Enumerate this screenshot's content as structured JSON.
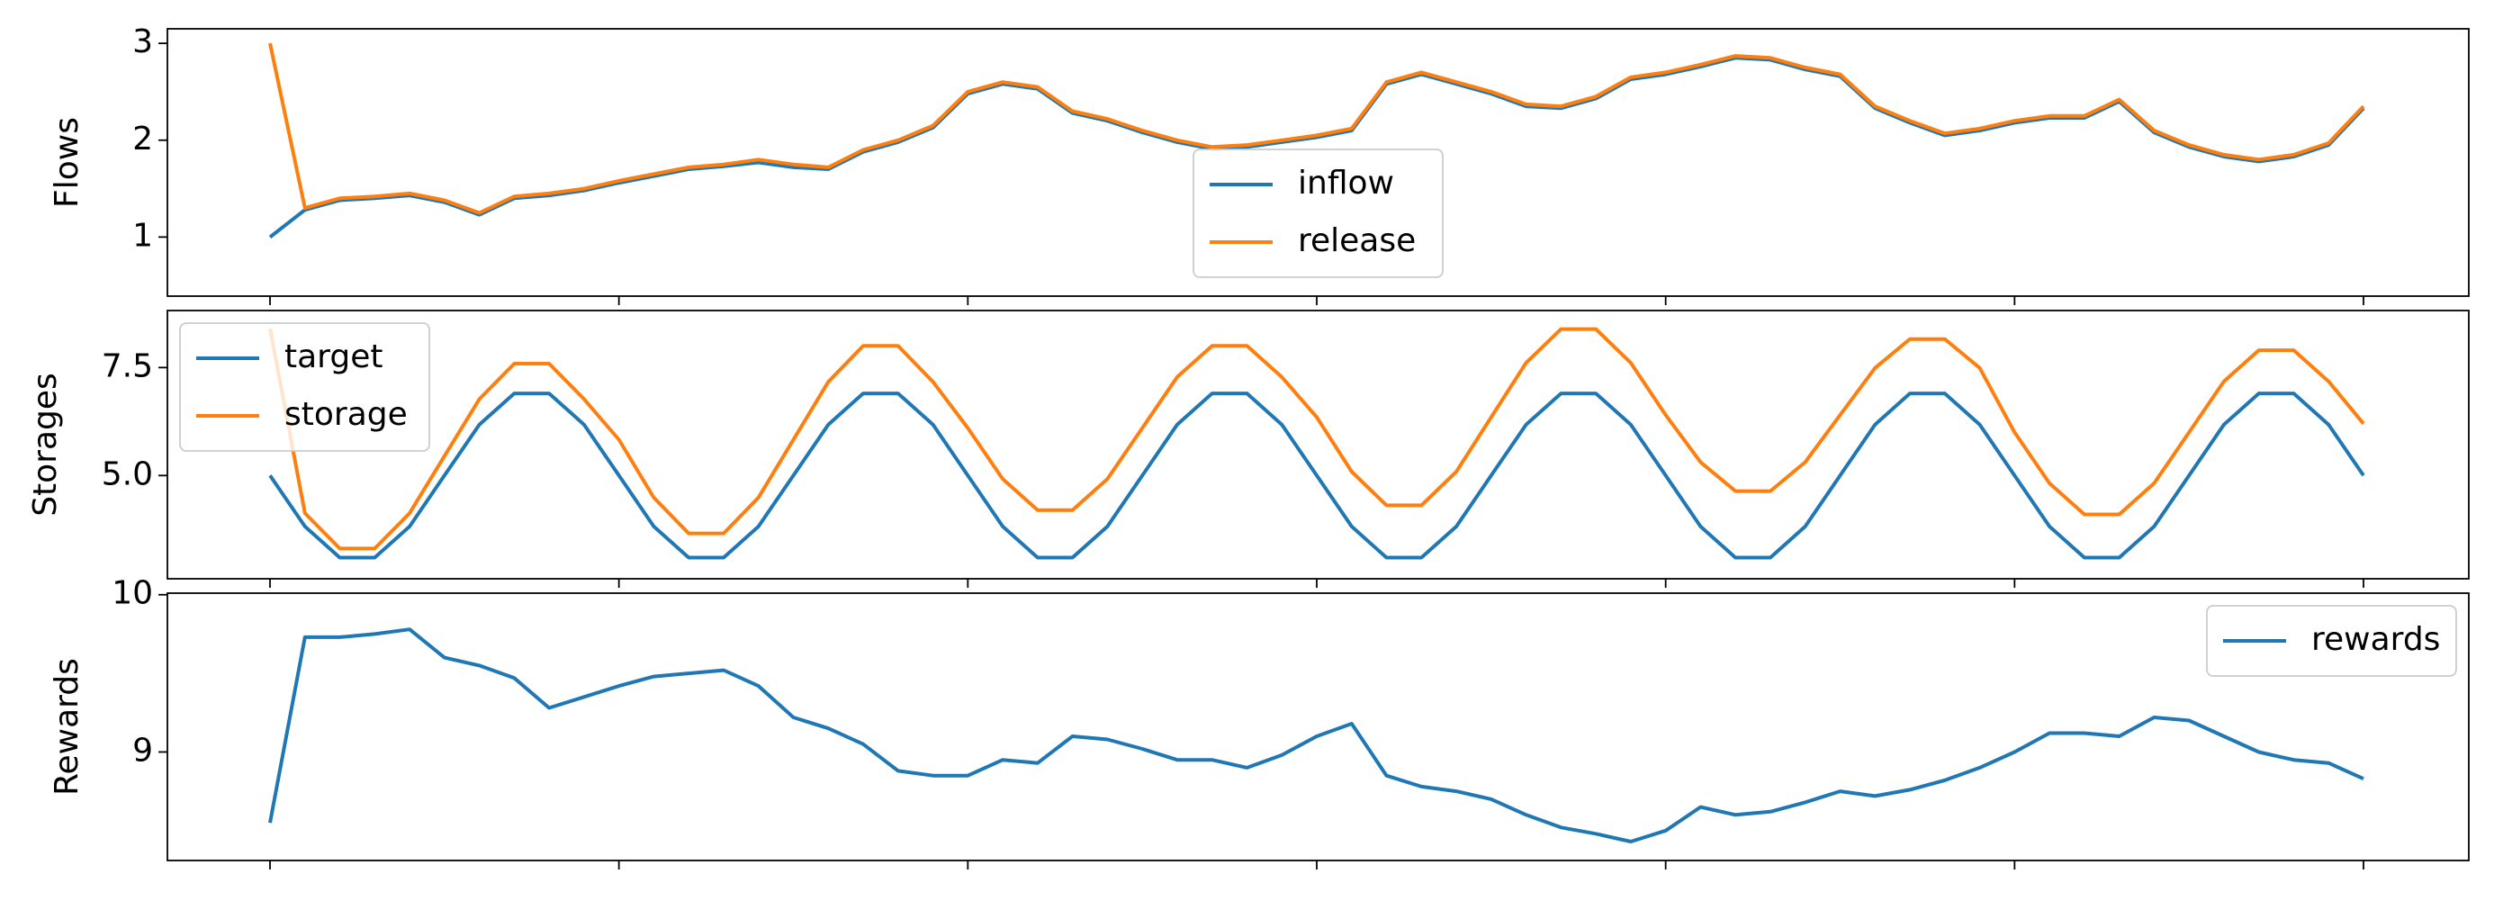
{
  "chart_data": [
    {
      "type": "line",
      "ylabel": "Flows",
      "ylim": [
        0.39,
        3.15
      ],
      "yticks": [
        1,
        2,
        3
      ],
      "legend": "lower center",
      "series": [
        {
          "name": "inflow",
          "color": "#1f77b4",
          "values": [
            1.0,
            1.28,
            1.38,
            1.4,
            1.43,
            1.36,
            1.23,
            1.4,
            1.43,
            1.48,
            1.56,
            1.63,
            1.7,
            1.73,
            1.77,
            1.72,
            1.7,
            1.88,
            1.98,
            2.13,
            2.48,
            2.58,
            2.53,
            2.28,
            2.2,
            2.08,
            1.98,
            1.91,
            1.93,
            1.98,
            2.03,
            2.1,
            2.58,
            2.68,
            2.58,
            2.48,
            2.35,
            2.33,
            2.43,
            2.63,
            2.68,
            2.76,
            2.85,
            2.83,
            2.73,
            2.66,
            2.33,
            2.18,
            2.05,
            2.1,
            2.18,
            2.23,
            2.23,
            2.4,
            2.08,
            1.93,
            1.83,
            1.78,
            1.83,
            1.95,
            2.33
          ]
        },
        {
          "name": "release",
          "color": "#ff7f0e",
          "values": [
            3.0,
            1.3,
            1.4,
            1.42,
            1.45,
            1.38,
            1.25,
            1.42,
            1.45,
            1.5,
            1.58,
            1.65,
            1.72,
            1.75,
            1.8,
            1.75,
            1.72,
            1.9,
            2.0,
            2.15,
            2.5,
            2.6,
            2.55,
            2.3,
            2.22,
            2.1,
            2.0,
            1.93,
            1.95,
            2.0,
            2.05,
            2.12,
            2.6,
            2.7,
            2.6,
            2.5,
            2.37,
            2.35,
            2.45,
            2.65,
            2.7,
            2.78,
            2.87,
            2.85,
            2.75,
            2.68,
            2.35,
            2.2,
            2.07,
            2.12,
            2.2,
            2.25,
            2.25,
            2.42,
            2.1,
            1.95,
            1.85,
            1.8,
            1.85,
            1.97,
            2.35
          ]
        }
      ]
    },
    {
      "type": "line",
      "ylabel": "Storages",
      "ylim": [
        2.61,
        8.82
      ],
      "yticks": [
        {
          "value": 5,
          "label": "5.0"
        },
        {
          "value": 7.5,
          "label": "7.5"
        }
      ],
      "legend": "upper left",
      "series": [
        {
          "name": "target",
          "color": "#1f77b4",
          "values": [
            5.0,
            3.82,
            3.1,
            3.1,
            3.82,
            5.0,
            6.18,
            6.9,
            6.9,
            6.18,
            5.0,
            3.82,
            3.1,
            3.1,
            3.82,
            5.0,
            6.18,
            6.9,
            6.9,
            6.18,
            5.0,
            3.82,
            3.1,
            3.1,
            3.82,
            5.0,
            6.18,
            6.9,
            6.9,
            6.18,
            5.0,
            3.82,
            3.1,
            3.1,
            3.82,
            5.0,
            6.18,
            6.9,
            6.9,
            6.18,
            5.0,
            3.82,
            3.1,
            3.1,
            3.82,
            5.0,
            6.18,
            6.9,
            6.9,
            6.18,
            5.0,
            3.82,
            3.1,
            3.1,
            3.82,
            5.0,
            6.18,
            6.9,
            6.9,
            6.18,
            5.0
          ]
        },
        {
          "name": "storage",
          "color": "#ff7f0e",
          "values": [
            8.4,
            4.13,
            3.31,
            3.31,
            4.13,
            5.45,
            6.77,
            7.59,
            7.59,
            6.77,
            5.83,
            4.49,
            3.66,
            3.66,
            4.49,
            5.83,
            7.17,
            8.0,
            8.0,
            7.17,
            6.1,
            4.92,
            4.2,
            4.2,
            4.92,
            6.1,
            7.28,
            8.0,
            8.0,
            7.28,
            6.35,
            5.09,
            4.31,
            4.31,
            5.09,
            6.35,
            7.61,
            8.39,
            8.39,
            7.61,
            6.4,
            5.31,
            4.64,
            4.64,
            5.31,
            6.4,
            7.49,
            8.16,
            8.16,
            7.49,
            6.0,
            4.82,
            4.1,
            4.1,
            4.82,
            6.0,
            7.18,
            7.9,
            7.9,
            7.18,
            6.2
          ]
        }
      ]
    },
    {
      "type": "line",
      "ylabel": "Rewards",
      "ylim": [
        8.31,
        10.01
      ],
      "yticks": [
        9,
        10
      ],
      "legend": "upper right",
      "series": [
        {
          "name": "rewards",
          "color": "#1f77b4",
          "values": [
            8.55,
            9.73,
            9.73,
            9.75,
            9.78,
            9.6,
            9.55,
            9.47,
            9.28,
            9.35,
            9.42,
            9.48,
            9.5,
            9.52,
            9.42,
            9.22,
            9.15,
            9.05,
            8.88,
            8.85,
            8.85,
            8.95,
            8.93,
            9.1,
            9.08,
            9.02,
            8.95,
            8.95,
            8.9,
            8.98,
            9.1,
            9.18,
            8.85,
            8.78,
            8.75,
            8.7,
            8.6,
            8.52,
            8.48,
            8.43,
            8.5,
            8.65,
            8.6,
            8.62,
            8.68,
            8.75,
            8.72,
            8.76,
            8.82,
            8.9,
            9.0,
            9.12,
            9.12,
            9.1,
            9.22,
            9.2,
            9.1,
            9.0,
            8.95,
            8.93,
            8.83
          ]
        }
      ]
    }
  ]
}
